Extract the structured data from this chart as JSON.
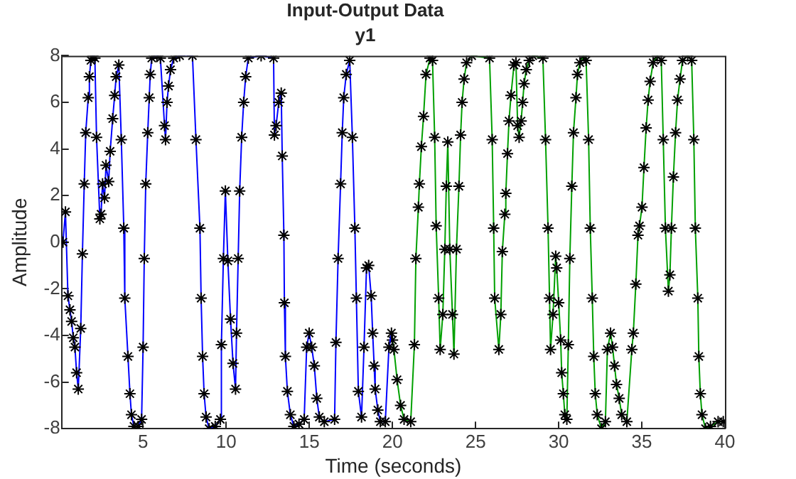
{
  "chart_data": {
    "type": "line",
    "title": "Input-Output Data",
    "subtitle": "y1",
    "xlabel": "Time (seconds)",
    "ylabel": "Amplitude",
    "xlim": [
      0.1,
      40
    ],
    "xticks": [
      5,
      10,
      15,
      20,
      25,
      30,
      35,
      40
    ],
    "ylim": [
      -8,
      8
    ],
    "yticks": [
      -8,
      -6,
      -4,
      -2,
      0,
      2,
      4,
      6,
      8
    ],
    "grid": false,
    "legend": false,
    "marker": "cross",
    "line_style": "solid",
    "series": [
      {
        "color": "#0000ff",
        "x": [
          0.18,
          0.33,
          0.48,
          0.6,
          0.7,
          0.8,
          0.9,
          1.0,
          1.1,
          1.25,
          1.35,
          1.46,
          1.55,
          1.7,
          1.77,
          1.86,
          2.0,
          2.1,
          2.2,
          2.4,
          2.47,
          2.56,
          2.68,
          2.77,
          2.93,
          3.02,
          3.17,
          3.29,
          3.38,
          3.54,
          3.69,
          3.84,
          3.9,
          4.09,
          4.21,
          4.3,
          4.45,
          4.7,
          4.91,
          5.0,
          5.07,
          5.16,
          5.28,
          5.37,
          5.43,
          5.52,
          5.83,
          6.04,
          6.29,
          6.35,
          6.44,
          6.53,
          6.65,
          6.84,
          7.2,
          7.97,
          8.18,
          8.42,
          8.49,
          8.58,
          8.67,
          8.79,
          8.97,
          9.34,
          9.65,
          9.71,
          9.83,
          9.95,
          10.1,
          10.26,
          10.41,
          10.56,
          10.62,
          10.72,
          10.81,
          10.93,
          11.05,
          11.17,
          11.33,
          12.1,
          12.85,
          12.9,
          13.0,
          13.16,
          13.31,
          13.37,
          13.47,
          13.5,
          13.56,
          13.68,
          13.86,
          14.07,
          14.38,
          14.69,
          14.84,
          14.99,
          15.14,
          15.3,
          15.45,
          15.6,
          15.9,
          16.52,
          16.6,
          16.73,
          16.88,
          16.98,
          17.07,
          17.22,
          17.43,
          17.59,
          17.74,
          17.83,
          17.95,
          18.14,
          18.29,
          18.44,
          18.57,
          18.72,
          18.81,
          18.9,
          18.96,
          19.12,
          19.27,
          19.57,
          19.79,
          19.94
        ],
        "values": [
          0,
          1.3,
          -2.3,
          -2.9,
          -3.4,
          -4.1,
          -4.5,
          -5.6,
          -6.3,
          -3.7,
          -0.5,
          2.5,
          4.7,
          6.2,
          7.1,
          7.8,
          8,
          7.9,
          4.5,
          1,
          1.2,
          2.5,
          1.9,
          3.3,
          2.6,
          3.9,
          5.3,
          6.3,
          7.1,
          7.6,
          4.4,
          0.6,
          -2.4,
          -4.9,
          -6.5,
          -7.4,
          -7.9,
          -7.9,
          -7.6,
          -4.5,
          -0.7,
          2.5,
          4.7,
          6.2,
          7.2,
          7.9,
          8,
          7.9,
          5,
          4.4,
          6,
          6.7,
          7.4,
          7.9,
          8,
          8,
          4.4,
          0.6,
          -2.4,
          -4.9,
          -6.5,
          -7.5,
          -8,
          -7.9,
          -7.6,
          -4.4,
          -0.7,
          2.2,
          -0.8,
          -3.3,
          -5.2,
          -6.3,
          -3.9,
          -0.7,
          2.2,
          4.5,
          6,
          7.1,
          7.9,
          8,
          7.9,
          4.6,
          5,
          6,
          6.4,
          3.7,
          0.3,
          -2.6,
          -4.9,
          -6.4,
          -7.4,
          -7.9,
          -7.8,
          -7.6,
          -4.5,
          -3.9,
          -4.5,
          -5.3,
          -6.7,
          -7.5,
          -7.7,
          -7.6,
          -4.3,
          -0.7,
          2.5,
          4.7,
          6.2,
          7.2,
          7.8,
          4.5,
          0.6,
          -2.4,
          -6.4,
          -7.5,
          -4.5,
          -1.1,
          -1,
          -2.3,
          -3.9,
          -5.3,
          -6.3,
          -7.2,
          -7.7,
          -7.7,
          -4.5,
          -3.9
        ]
      },
      {
        "color": "#00a000",
        "x": [
          20.0,
          20.09,
          20.28,
          20.49,
          20.7,
          21.1,
          21.32,
          21.41,
          21.56,
          21.62,
          21.74,
          21.87,
          22.02,
          22.26,
          22.41,
          22.54,
          22.63,
          22.78,
          22.87,
          23.03,
          23.15,
          23.24,
          23.33,
          23.45,
          23.61,
          23.7,
          23.85,
          24.0,
          24.1,
          24.19,
          24.31,
          24.46,
          24.77,
          25.84,
          26.0,
          26.09,
          26.15,
          26.4,
          26.52,
          26.61,
          26.76,
          26.82,
          26.92,
          27.01,
          27.13,
          27.31,
          27.43,
          27.53,
          27.62,
          27.74,
          27.83,
          27.92,
          28.05,
          28.23,
          28.44,
          29.05,
          29.21,
          29.36,
          29.45,
          29.51,
          29.66,
          29.82,
          29.88,
          30.0,
          30.12,
          30.18,
          30.28,
          30.37,
          30.49,
          30.58,
          30.67,
          30.79,
          30.89,
          31.04,
          31.13,
          31.28,
          31.5,
          31.65,
          31.8,
          31.9,
          32.02,
          32.11,
          32.2,
          32.32,
          32.57,
          32.81,
          32.93,
          33.12,
          33.24,
          33.36,
          33.48,
          33.64,
          33.79,
          34.1,
          34.4,
          34.49,
          34.64,
          34.77,
          34.86,
          35.01,
          35.13,
          35.26,
          35.38,
          35.5,
          35.68,
          35.93,
          36.17,
          36.29,
          36.42,
          36.6,
          36.69,
          36.78,
          36.9,
          37.03,
          37.15,
          37.3,
          37.45,
          37.76,
          38.0,
          38.13,
          38.22,
          38.37,
          38.43,
          38.52,
          38.62,
          38.83,
          39.13,
          39.59,
          39.9
        ],
        "values": [
          -4.2,
          -4.6,
          -5.9,
          -7,
          -7.6,
          -7.7,
          -4.4,
          -0.7,
          1.5,
          2.5,
          4.1,
          5.4,
          7.2,
          7.9,
          7.8,
          4.5,
          0.7,
          -2.4,
          -4.6,
          -3.1,
          -0.3,
          2.4,
          4.3,
          -0.3,
          -3.1,
          -4.8,
          -0.3,
          2.4,
          4.6,
          6,
          7,
          7.7,
          8,
          7.9,
          4.4,
          0.6,
          -2.4,
          -4.6,
          -3.1,
          -0.4,
          1.2,
          2.1,
          3.8,
          5.2,
          6.3,
          7.6,
          7.7,
          5,
          4.5,
          5.2,
          6,
          6.8,
          7.4,
          7.8,
          8,
          7.9,
          4.4,
          0.6,
          -2.4,
          -4.6,
          -3.1,
          -0.6,
          -1.1,
          -2.6,
          -4.2,
          -5.6,
          -6.5,
          -7.4,
          -7.6,
          -4.4,
          -0.7,
          2.4,
          4.7,
          6.2,
          7.2,
          7.7,
          8,
          7.8,
          4.4,
          0.6,
          -2.4,
          -4.9,
          -6.5,
          -7.4,
          -8,
          -7.7,
          -4.6,
          -3.9,
          -4.5,
          -5.3,
          -6.1,
          -6.7,
          -7.4,
          -7.7,
          -4.6,
          -3.9,
          -1.8,
          0.3,
          0.7,
          1.5,
          3.2,
          4.9,
          6.1,
          6.9,
          7.7,
          8,
          7.8,
          4.4,
          0.6,
          -2.1,
          -1.4,
          0.6,
          2.8,
          4.7,
          6.1,
          7,
          7.8,
          8,
          7.8,
          4.4,
          0.6,
          -2.4,
          -4.9,
          -6.5,
          -7.4,
          -8,
          -7.9,
          -7.7,
          -7.7
        ]
      }
    ]
  }
}
